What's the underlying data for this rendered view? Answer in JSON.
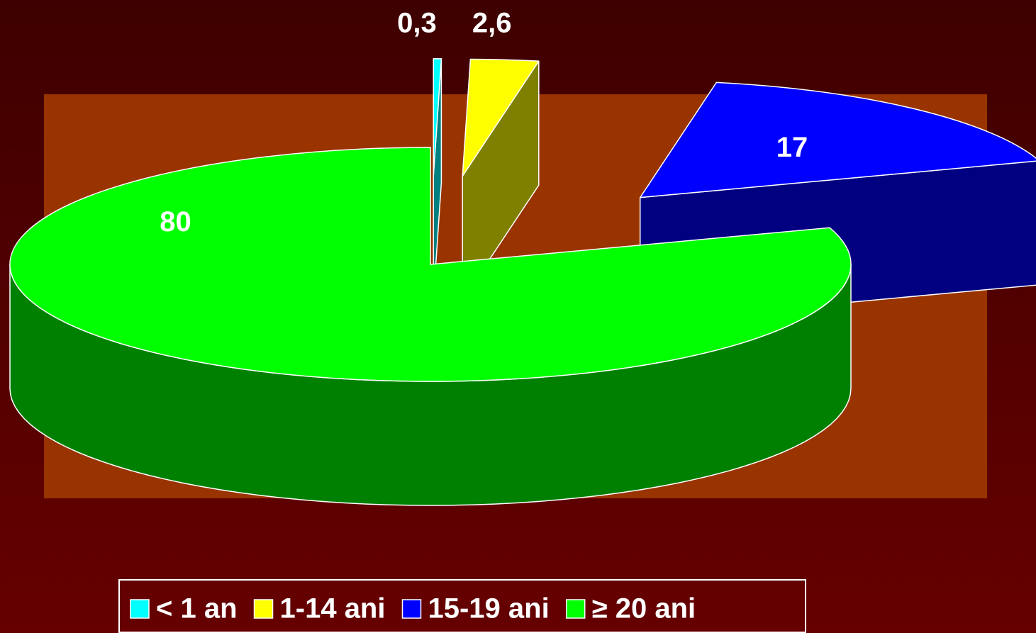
{
  "chart_data": {
    "type": "pie3d",
    "categories": [
      "< 1 an",
      "1-14 ani",
      "15-19 ani",
      "≥ 20 ani"
    ],
    "values": [
      0.3,
      2.6,
      17,
      80
    ],
    "value_labels": [
      "0,3",
      "2,6",
      "17",
      "80"
    ],
    "colors": [
      "#00ffff",
      "#ffff00",
      "#0000ff",
      "#00ff00"
    ],
    "side_colors": [
      "#008080",
      "#808000",
      "#000080",
      "#008000"
    ],
    "exploded": [
      true,
      true,
      true,
      false
    ],
    "legend": "bottom"
  }
}
